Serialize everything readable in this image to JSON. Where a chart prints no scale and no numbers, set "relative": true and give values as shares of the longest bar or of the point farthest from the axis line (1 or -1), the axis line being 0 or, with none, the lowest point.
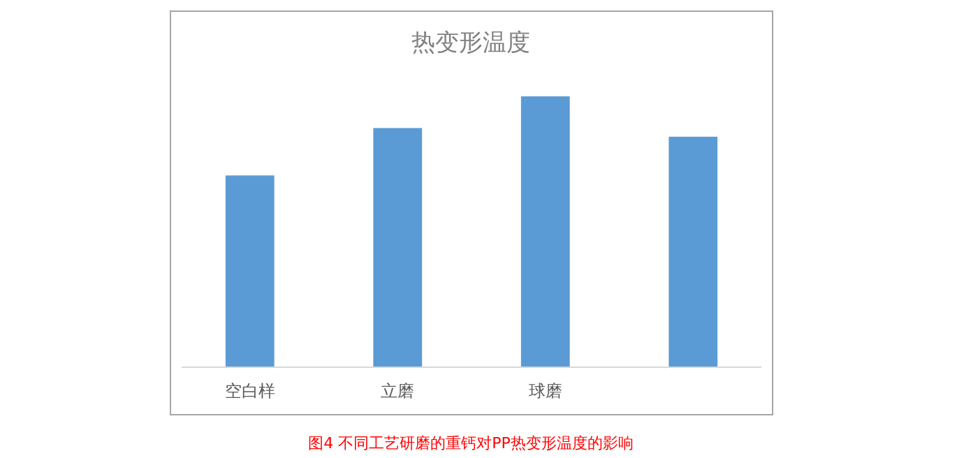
{
  "chart_data": {
    "type": "bar",
    "title": "热变形温度",
    "categories": [
      "空白样",
      "立磨",
      "球磨",
      null
    ],
    "values": [
      0.708,
      0.883,
      1,
      0.851
    ],
    "color": "#5b9bd5",
    "relative": true,
    "annotations": [
      "图4 不同工艺研磨的重钙对PP热变形温度的影响"
    ]
  }
}
